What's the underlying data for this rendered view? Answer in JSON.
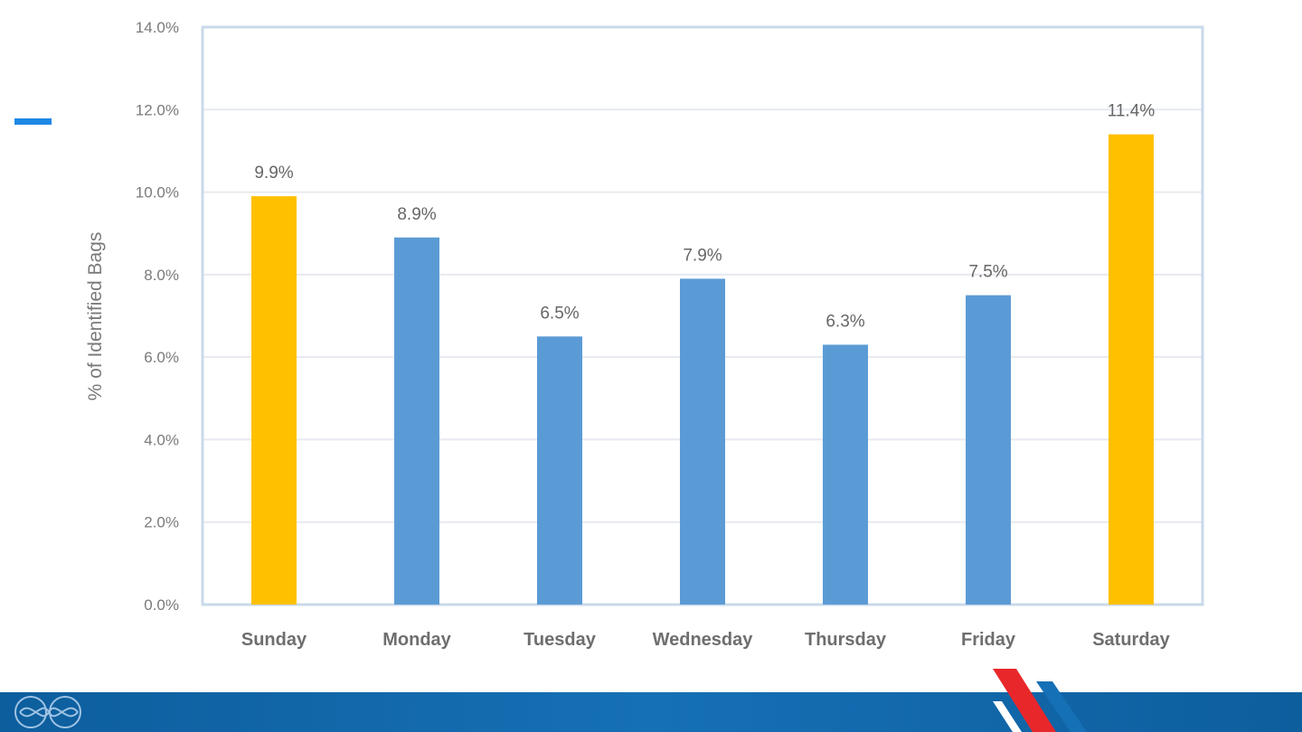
{
  "chart_data": {
    "type": "bar",
    "ylabel": "% of Identified Bags",
    "xlabel": "",
    "ylim": [
      0,
      14
    ],
    "yticks": [
      "0.0%",
      "2.0%",
      "4.0%",
      "6.0%",
      "8.0%",
      "10.0%",
      "12.0%",
      "14.0%"
    ],
    "grid": true,
    "categories": [
      "Sunday",
      "Monday",
      "Tuesday",
      "Wednesday",
      "Thursday",
      "Friday",
      "Saturday"
    ],
    "values": [
      9.9,
      8.9,
      6.5,
      7.9,
      6.3,
      7.5,
      11.4
    ],
    "data_labels": [
      "9.9%",
      "8.9%",
      "6.5%",
      "7.9%",
      "6.3%",
      "7.5%",
      "11.4%"
    ],
    "colors": {
      "weekend": "#ffc000",
      "weekday": "#5b9bd5",
      "grid": "#e6eaf0",
      "frame": "#c9d9ea"
    },
    "bar_color_keys": [
      "weekend",
      "weekday",
      "weekday",
      "weekday",
      "weekday",
      "weekday",
      "weekend"
    ]
  },
  "decorations": {
    "accent_color": "#1e88e5",
    "footer_color": "#0d5e9d",
    "footer_logo_icon": "infinity-loop-icon",
    "brand_mark_icon": "diagonal-stripes-icon"
  }
}
